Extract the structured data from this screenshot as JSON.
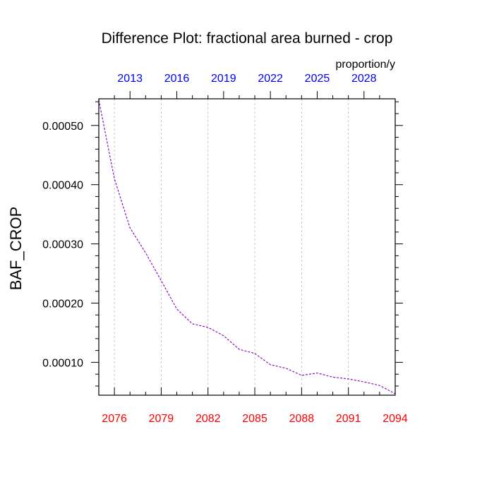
{
  "chart_data": {
    "type": "line",
    "title": "Difference Plot: fractional area burned - crop",
    "units_label": "proportion/y",
    "ylabel": "BAF_CROP",
    "xlabel": "",
    "xlim": [
      2075,
      2094
    ],
    "ylim": [
      4.45e-05,
      0.000545
    ],
    "grid": "vertical dashed lines at bottom-axis ticks",
    "bottom_axis": {
      "color": "#ff0000",
      "ticks": [
        2076,
        2079,
        2082,
        2085,
        2088,
        2091,
        2094
      ],
      "tick_labels": [
        "2076",
        "2079",
        "2082",
        "2085",
        "2088",
        "2091",
        "2094"
      ]
    },
    "top_axis": {
      "color": "#0000ff",
      "ticks": [
        2013,
        2016,
        2019,
        2022,
        2025,
        2028
      ],
      "tick_labels": [
        "2013",
        "2016",
        "2019",
        "2022",
        "2025",
        "2028"
      ],
      "range": [
        2011,
        2030
      ]
    },
    "y_ticks": [
      0.0001,
      0.0002,
      0.0003,
      0.0004,
      0.0005
    ],
    "y_tick_labels": [
      "0.00010",
      "0.00020",
      "0.00030",
      "0.00040",
      "0.00050"
    ],
    "series": [
      {
        "color": "#8000c0",
        "style": "dashed",
        "x": [
          2075,
          2076,
          2077,
          2078,
          2079,
          2080,
          2081,
          2082,
          2083,
          2084,
          2085,
          2086,
          2087,
          2088,
          2089,
          2090,
          2091,
          2092,
          2093,
          2094
        ],
        "values": [
          0.000543,
          0.00041,
          0.000327,
          0.000285,
          0.000238,
          0.00019,
          0.000165,
          0.000159,
          0.000145,
          0.000122,
          0.000115,
          9.6e-05,
          9e-05,
          7.8e-05,
          8.2e-05,
          7.5e-05,
          7.2e-05,
          6.7e-05,
          6.1e-05,
          4.7e-05
        ]
      }
    ]
  }
}
